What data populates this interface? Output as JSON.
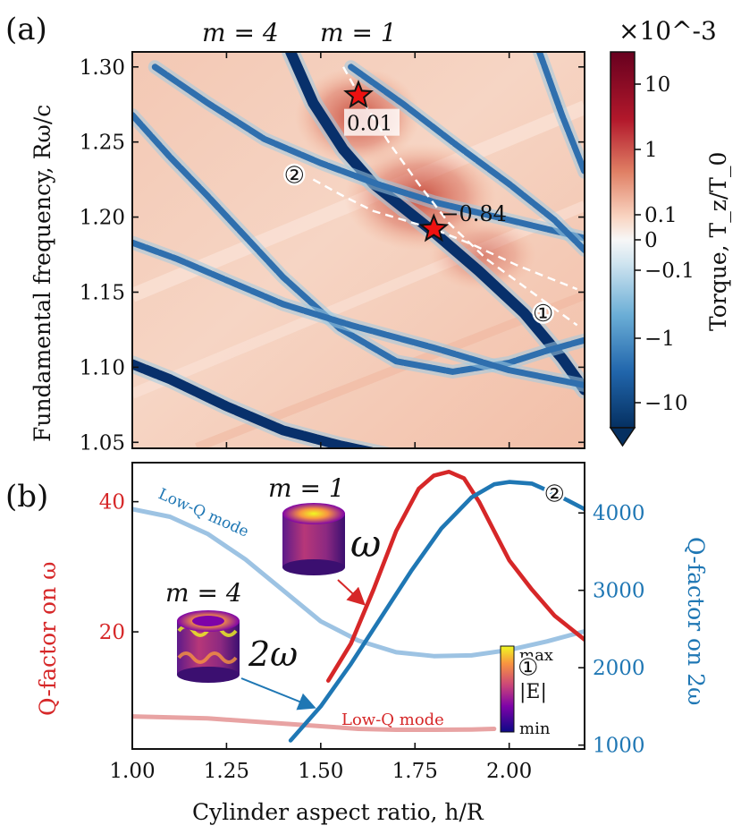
{
  "figure": {
    "panel_a_tag": "(a)",
    "panel_b_tag": "(b)",
    "mode_labels": [
      "m = 4",
      "m = 1"
    ]
  },
  "chart_data": [
    {
      "type": "heatmap",
      "panel": "(a)",
      "xlabel": "",
      "ylabel": "Fundamental frequency, Rω/c",
      "xlim": [
        1.0,
        2.2
      ],
      "ylim": [
        1.046,
        1.31
      ],
      "y_ticks": [
        "1.05",
        "1.10",
        "1.15",
        "1.20",
        "1.25",
        "1.30"
      ],
      "colorbar": {
        "label": "Torque, T_z/T_0",
        "scale_label": "×10^-3",
        "ticks": [
          "10",
          "1",
          "0.1",
          "0",
          "−0.1",
          "−1",
          "−10"
        ]
      },
      "stars": [
        {
          "x": 1.6,
          "y": 1.281,
          "label": "0.01"
        },
        {
          "x": 1.8,
          "y": 1.192,
          "label": "−0.84"
        }
      ],
      "curve_markers": [
        {
          "label": "②",
          "x": 1.43,
          "y": 1.228
        },
        {
          "label": "①",
          "x": 2.09,
          "y": 1.136
        }
      ],
      "dashed_curves": [
        {
          "name": "mode-1",
          "x": [
            1.56,
            1.6,
            1.68,
            1.76,
            1.84,
            1.94,
            2.06,
            2.18
          ],
          "y": [
            1.3,
            1.282,
            1.25,
            1.222,
            1.196,
            1.172,
            1.15,
            1.128
          ]
        },
        {
          "name": "mode-2",
          "x": [
            1.48,
            1.56,
            1.64,
            1.72,
            1.8,
            1.9,
            2.02,
            2.14,
            2.18
          ],
          "y": [
            1.225,
            1.214,
            1.204,
            1.198,
            1.192,
            1.182,
            1.168,
            1.156,
            1.152
          ]
        }
      ],
      "negative_bands": [
        {
          "x": [
            1.42,
            1.48,
            1.56,
            1.64,
            1.72,
            1.8,
            1.92,
            2.04,
            2.14,
            2.2
          ],
          "y": [
            1.31,
            1.276,
            1.245,
            1.222,
            1.206,
            1.19,
            1.164,
            1.136,
            1.106,
            1.085
          ]
        },
        {
          "x": [
            1.0,
            1.1,
            1.2,
            1.3,
            1.4,
            1.55,
            1.7,
            1.85,
            2.0,
            2.1,
            2.2
          ],
          "y": [
            1.268,
            1.24,
            1.214,
            1.187,
            1.16,
            1.126,
            1.104,
            1.097,
            1.103,
            1.111,
            1.118
          ]
        },
        {
          "x": [
            1.06,
            1.2,
            1.35,
            1.5,
            1.65,
            1.8,
            2.0,
            2.2
          ],
          "y": [
            1.3,
            1.276,
            1.252,
            1.236,
            1.222,
            1.21,
            1.198,
            1.186
          ]
        },
        {
          "x": [
            1.0,
            1.1,
            1.25,
            1.4,
            1.55,
            1.7,
            1.85
          ],
          "y": [
            1.102,
            1.092,
            1.074,
            1.058,
            1.048,
            1.04,
            1.034
          ]
        },
        {
          "x": [
            1.0,
            1.12,
            1.25,
            1.4,
            1.58,
            1.8,
            2.0,
            2.2
          ],
          "y": [
            1.183,
            1.172,
            1.158,
            1.142,
            1.128,
            1.113,
            1.098,
            1.088
          ]
        },
        {
          "x": [
            1.58,
            1.72,
            1.86,
            2.0,
            2.12,
            2.2
          ],
          "y": [
            1.3,
            1.275,
            1.248,
            1.222,
            1.198,
            1.178
          ]
        },
        {
          "x": [
            2.08,
            2.14,
            2.2
          ],
          "y": [
            1.31,
            1.268,
            1.23
          ]
        }
      ]
    },
    {
      "type": "line",
      "panel": "(b)",
      "xlabel": "Cylinder aspect ratio, h/R",
      "ylabel_left": "Q-factor on ω",
      "ylabel_right": "Q-factor on 2ω",
      "xlim": [
        1.0,
        2.2
      ],
      "ylim_left": [
        2,
        46
      ],
      "ylim_right": [
        950,
        4650
      ],
      "x_ticks": [
        "1.00",
        "1.25",
        "1.50",
        "1.75",
        "2.00"
      ],
      "y_ticks_left": [
        "20",
        "40"
      ],
      "y_ticks_right": [
        "1000",
        "2000",
        "3000",
        "4000"
      ],
      "series": [
        {
          "name": "ω mode ①",
          "axis": "left",
          "color": "#d62728",
          "x": [
            1.52,
            1.58,
            1.64,
            1.7,
            1.76,
            1.8,
            1.84,
            1.88,
            1.92,
            1.96,
            2.0,
            2.06,
            2.12,
            2.2
          ],
          "y": [
            12.5,
            18.2,
            26.5,
            35.5,
            42.0,
            44.0,
            44.6,
            43.6,
            40.0,
            35.5,
            31.0,
            26.5,
            22.5,
            18.8
          ]
        },
        {
          "name": "Low-Q mode (ω)",
          "axis": "left",
          "color": "#e8a3a3",
          "x": [
            1.0,
            1.2,
            1.4,
            1.6,
            1.7,
            1.8,
            1.9,
            1.96
          ],
          "y": [
            7.0,
            6.7,
            5.9,
            5.1,
            4.95,
            4.95,
            5.0,
            5.1
          ]
        },
        {
          "name": "2ω mode ②",
          "axis": "right",
          "color": "#1f77b4",
          "x": [
            1.42,
            1.5,
            1.58,
            1.66,
            1.74,
            1.82,
            1.9,
            1.96,
            2.0,
            2.06,
            2.12,
            2.2
          ],
          "y": [
            1060,
            1500,
            2050,
            2650,
            3250,
            3800,
            4200,
            4370,
            4400,
            4380,
            4250,
            4050
          ]
        },
        {
          "name": "Low-Q mode (2ω)",
          "axis": "right",
          "color": "#9dc3e3",
          "x": [
            1.0,
            1.1,
            1.2,
            1.3,
            1.4,
            1.5,
            1.6,
            1.7,
            1.8,
            1.9,
            2.0,
            2.1,
            2.2
          ],
          "y": [
            4050,
            3950,
            3730,
            3400,
            3000,
            2600,
            2350,
            2200,
            2150,
            2160,
            2230,
            2340,
            2470
          ]
        }
      ],
      "annotations": {
        "low_q_blue": "Low-Q mode",
        "low_q_red": "Low-Q mode",
        "inset_m1": "m = 1",
        "inset_m4": "m = 4",
        "omega": "ω",
        "two_omega": "2ω",
        "marker_2": "②",
        "marker_1": "①",
        "colorbar_max": "max",
        "colorbar_min": "min",
        "colorbar_label": "|E|"
      }
    }
  ]
}
